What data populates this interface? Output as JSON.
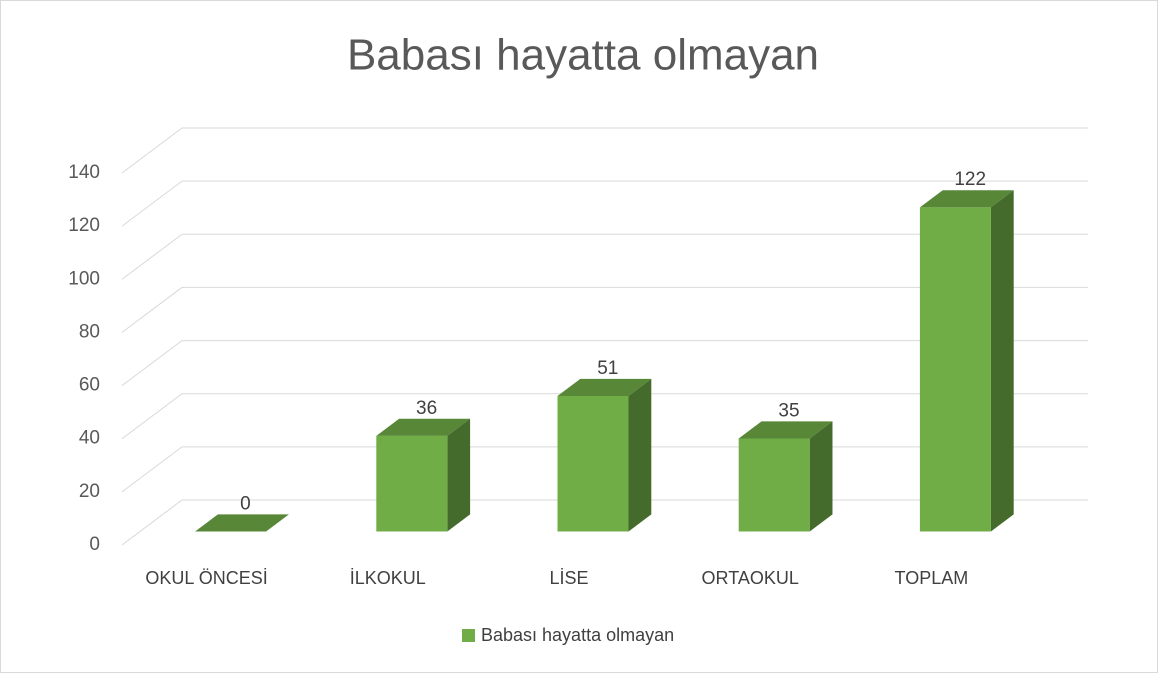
{
  "chart_data": {
    "type": "bar3d",
    "title": "Babası hayatta olmayan",
    "categories": [
      "OKUL ÖNCESİ",
      "İLKOKUL",
      "LİSE",
      "ORTAOKUL",
      "TOPLAM"
    ],
    "series": [
      {
        "name": "Babası hayatta olmayan",
        "color": "#70ad47",
        "values": [
          0,
          36,
          51,
          35,
          122
        ]
      }
    ],
    "ylim": [
      0,
      140
    ],
    "yticks": [
      0,
      20,
      40,
      60,
      80,
      100,
      120,
      140
    ],
    "grid": true,
    "legend": "bottom"
  }
}
